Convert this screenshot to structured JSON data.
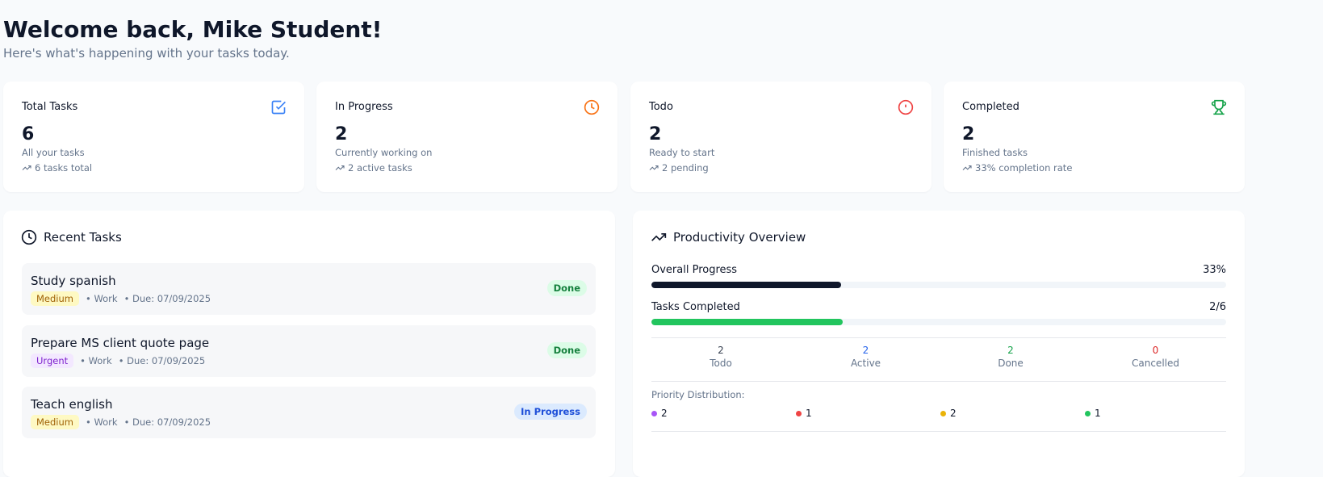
{
  "header": {
    "title": "Welcome back, Mike Student!",
    "subtitle": "Here's what's happening with your tasks today."
  },
  "stats": [
    {
      "label": "Total Tasks",
      "value": 6,
      "description": "All your tasks",
      "trend": "6 tasks total"
    },
    {
      "label": "In Progress",
      "value": 2,
      "description": "Currently working on",
      "trend": "2 active tasks"
    },
    {
      "label": "Todo",
      "value": 2,
      "description": "Ready to start",
      "trend": "2 pending"
    },
    {
      "label": "Completed",
      "value": 2,
      "description": "Finished tasks",
      "trend": "33% completion rate"
    }
  ],
  "recent_tasks": {
    "title": "Recent Tasks",
    "items": [
      {
        "name": "Study spanish",
        "priority": "Medium",
        "category": "Work",
        "due": "Due: 07/09/2025",
        "status": "Done"
      },
      {
        "name": "Prepare MS client quote page",
        "priority": "Urgent",
        "category": "Work",
        "due": "Due: 07/09/2025",
        "status": "Done"
      },
      {
        "name": "Teach english",
        "priority": "Medium",
        "category": "Work",
        "due": "Due: 07/09/2025",
        "status": "In Progress"
      }
    ]
  },
  "productivity": {
    "title": "Productivity Overview",
    "overall": {
      "label": "Overall Progress",
      "value": 33,
      "value_label": "33%",
      "color": "#0f172a"
    },
    "completed": {
      "label": "Tasks Completed",
      "completed": 2,
      "total": 6,
      "value_label": "2/6",
      "color": "#22c55e"
    },
    "counts": [
      {
        "value": 2,
        "label": "Todo",
        "color": "#374151"
      },
      {
        "value": 2,
        "label": "Active",
        "color": "#2563eb"
      },
      {
        "value": 2,
        "label": "Done",
        "color": "#16a34a"
      },
      {
        "value": 0,
        "label": "Cancelled",
        "color": "#dc2626"
      }
    ],
    "priority": {
      "label": "Priority Distribution:",
      "items": [
        {
          "count": 2,
          "color": "#a855f7"
        },
        {
          "count": 1,
          "color": "#ef4444"
        },
        {
          "count": 2,
          "color": "#eab308"
        },
        {
          "count": 1,
          "color": "#22c55e"
        }
      ]
    }
  }
}
